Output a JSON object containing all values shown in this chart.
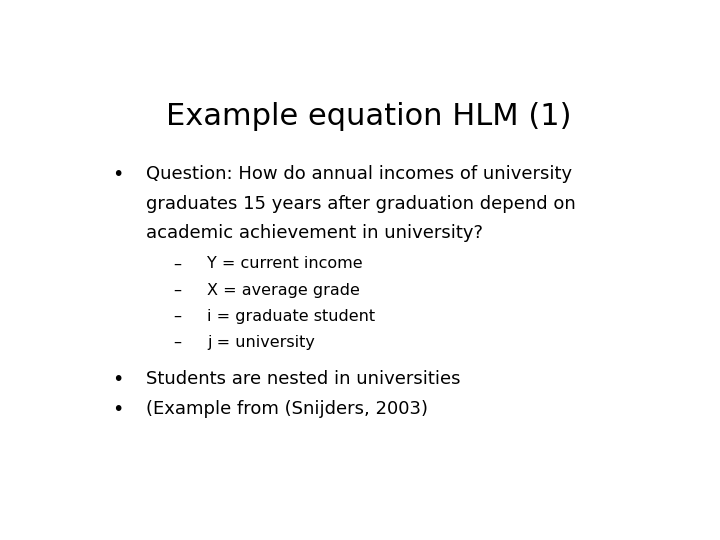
{
  "title": "Example equation HLM (1)",
  "title_fontsize": 22,
  "background_color": "#ffffff",
  "text_color": "#000000",
  "body_fontsize": 13,
  "sub_fontsize": 11.5,
  "bullet1_lines": [
    "Question: How do annual incomes of university",
    "graduates 15 years after graduation depend on",
    "academic achievement in university?"
  ],
  "sub_items": [
    "Y = current income",
    "X = average grade",
    "i = graduate student",
    "j = university"
  ],
  "bullet2": "Students are nested in universities",
  "bullet3": "(Example from (Snijders, 2003)"
}
